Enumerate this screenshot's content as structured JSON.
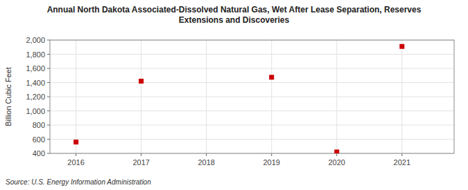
{
  "chart_data": {
    "type": "scatter",
    "title": "Annual North Dakota Associated-Dissolved Natural Gas, Wet After Lease Separation, Reserves\nExtensions and Discoveries",
    "y_label": "Billion Cubic Feet",
    "source": "Source: U.S. Energy Information Administration",
    "x": [
      2016,
      2017,
      2018,
      2019,
      2020,
      2021
    ],
    "values": [
      560,
      1420,
      null,
      1475,
      420,
      1910
    ],
    "color": "#cc0000",
    "marker": "square",
    "xlim": [
      2015.6,
      2021.8
    ],
    "xticks": [
      2016,
      2017,
      2018,
      2019,
      2020,
      2021
    ],
    "ylim": [
      400,
      2000
    ],
    "yticks": [
      400,
      600,
      800,
      {
        "value": 1000,
        "label": "1,000"
      },
      {
        "value": 1200,
        "label": "1,200"
      },
      {
        "value": 1400,
        "label": "1,400"
      },
      {
        "value": 1600,
        "label": "1,600"
      },
      {
        "value": 1800,
        "label": "1,800"
      },
      {
        "value": 2000,
        "label": "2,000"
      }
    ],
    "grid": true
  }
}
